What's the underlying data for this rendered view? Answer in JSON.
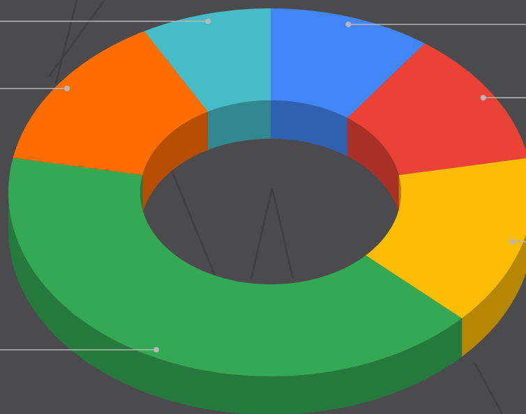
{
  "chart_data": {
    "type": "pie",
    "values": [
      10,
      12,
      15,
      41,
      14,
      8
    ],
    "colors": [
      "#4285f4",
      "#ea4335",
      "#fbbc04",
      "#34a853",
      "#ff6d01",
      "#46bdc6"
    ],
    "donut": true,
    "three_d": true
  }
}
